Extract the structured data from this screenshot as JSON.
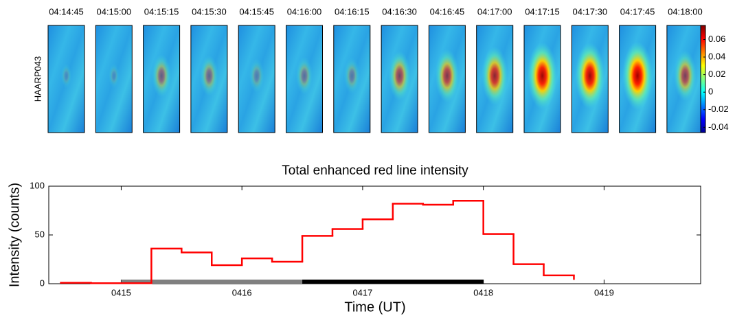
{
  "chart_data": [
    {
      "type": "image-grid",
      "ylabel": "HAARP043",
      "panels": [
        "04:14:45",
        "04:15:00",
        "04:15:15",
        "04:15:30",
        "04:15:45",
        "04:16:00",
        "04:16:15",
        "04:16:30",
        "04:16:45",
        "04:17:00",
        "04:17:15",
        "04:17:30",
        "04:17:45",
        "04:18:00"
      ],
      "clim": [
        -0.046,
        0.076
      ],
      "cticks": [
        -0.04,
        -0.02,
        0,
        0.02,
        0.04,
        0.06
      ]
    },
    {
      "type": "line",
      "title": "Total enhanced red line intensity",
      "xlabel": "Time (UT)",
      "ylabel": "Intensity (counts)",
      "x": [
        14.5,
        14.75,
        15,
        15.25,
        15.5,
        15.75,
        16,
        16.25,
        16.5,
        16.75,
        17,
        17.25,
        17.5,
        17.75,
        18,
        18.25,
        18.5,
        18.75
      ],
      "series": [
        {
          "color": "#ff0000",
          "values": [
            1,
            0.5,
            0.5,
            36,
            32,
            19,
            26,
            22.5,
            49,
            56,
            66,
            82,
            81,
            85,
            51,
            20,
            8.5,
            4
          ]
        }
      ],
      "bars": [
        {
          "start": 15,
          "end": 16.5,
          "color": "#808080"
        },
        {
          "start": 16.5,
          "end": 18,
          "color": "#000000"
        }
      ],
      "xlim": [
        14.4,
        19.8
      ],
      "xticks": [
        {
          "value": 15,
          "label": "0415"
        },
        {
          "value": 16,
          "label": "0416"
        },
        {
          "value": 17,
          "label": "0417"
        },
        {
          "value": 18,
          "label": "0418"
        },
        {
          "value": 19,
          "label": "0419"
        }
      ],
      "ylim": [
        0,
        100
      ],
      "yticks": [
        0,
        50,
        100
      ]
    }
  ]
}
